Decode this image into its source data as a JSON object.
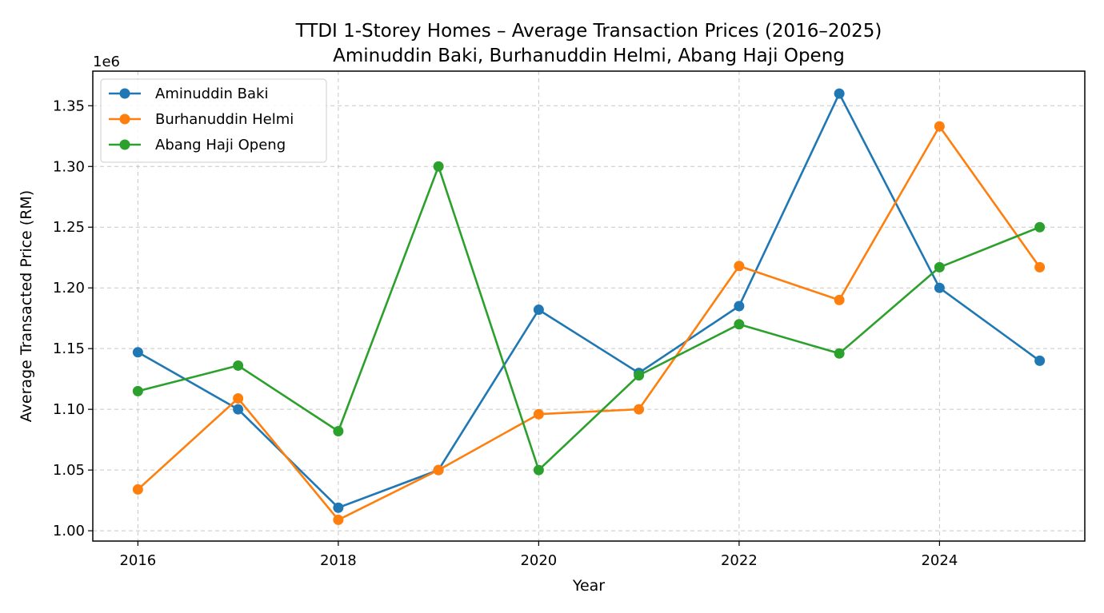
{
  "chart_data": {
    "type": "line",
    "title": "TTDI 1-Storey Homes – Average Transaction Prices (2016–2025)",
    "subtitle": "Aminuddin Baki, Burhanuddin Helmi, Abang Haji Openg",
    "xlabel": "Year",
    "ylabel": "Average Transacted Price (RM)",
    "y_offset_label": "1e6",
    "xlim": [
      2015.55,
      2025.45
    ],
    "ylim": [
      0.9915,
      1.3785
    ],
    "x_ticks": [
      2016,
      2018,
      2020,
      2022,
      2024
    ],
    "x_tick_labels": [
      "2016",
      "2018",
      "2020",
      "2022",
      "2024"
    ],
    "y_ticks": [
      1.0,
      1.05,
      1.1,
      1.15,
      1.2,
      1.25,
      1.3,
      1.35
    ],
    "y_tick_labels": [
      "1.00",
      "1.05",
      "1.10",
      "1.15",
      "1.20",
      "1.25",
      "1.30",
      "1.35"
    ],
    "grid": true,
    "legend_position": "top-left",
    "x": [
      2016,
      2017,
      2018,
      2019,
      2020,
      2021,
      2022,
      2023,
      2024,
      2025
    ],
    "series": [
      {
        "name": "Aminuddin Baki",
        "color": "#1f77b4",
        "values": [
          1.147,
          1.1,
          1.019,
          1.05,
          1.182,
          1.13,
          1.185,
          1.36,
          1.2,
          1.14
        ]
      },
      {
        "name": "Burhanuddin Helmi",
        "color": "#ff7f0e",
        "values": [
          1.034,
          1.109,
          1.009,
          1.05,
          1.096,
          1.1,
          1.218,
          1.19,
          1.333,
          1.217
        ]
      },
      {
        "name": "Abang Haji Openg",
        "color": "#2ca02c",
        "values": [
          1.115,
          1.136,
          1.082,
          1.3,
          1.05,
          1.128,
          1.17,
          1.146,
          1.217,
          1.25
        ]
      }
    ]
  }
}
